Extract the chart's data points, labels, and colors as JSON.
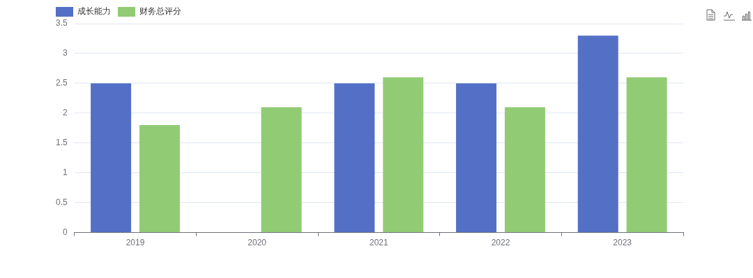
{
  "chart_data": {
    "type": "bar",
    "categories": [
      "2019",
      "2020",
      "2021",
      "2022",
      "2023"
    ],
    "series": [
      {
        "name": "成长能力",
        "color": "#5470c6",
        "values": [
          2.5,
          null,
          2.5,
          2.5,
          3.3
        ]
      },
      {
        "name": "财务总评分",
        "color": "#91cc75",
        "values": [
          1.8,
          2.1,
          2.6,
          2.1,
          2.6
        ]
      }
    ],
    "ylim": [
      0,
      3.5
    ],
    "yticks": [
      0,
      0.5,
      1,
      1.5,
      2,
      2.5,
      3,
      3.5
    ],
    "grid": "y",
    "legend": "top left"
  }
}
